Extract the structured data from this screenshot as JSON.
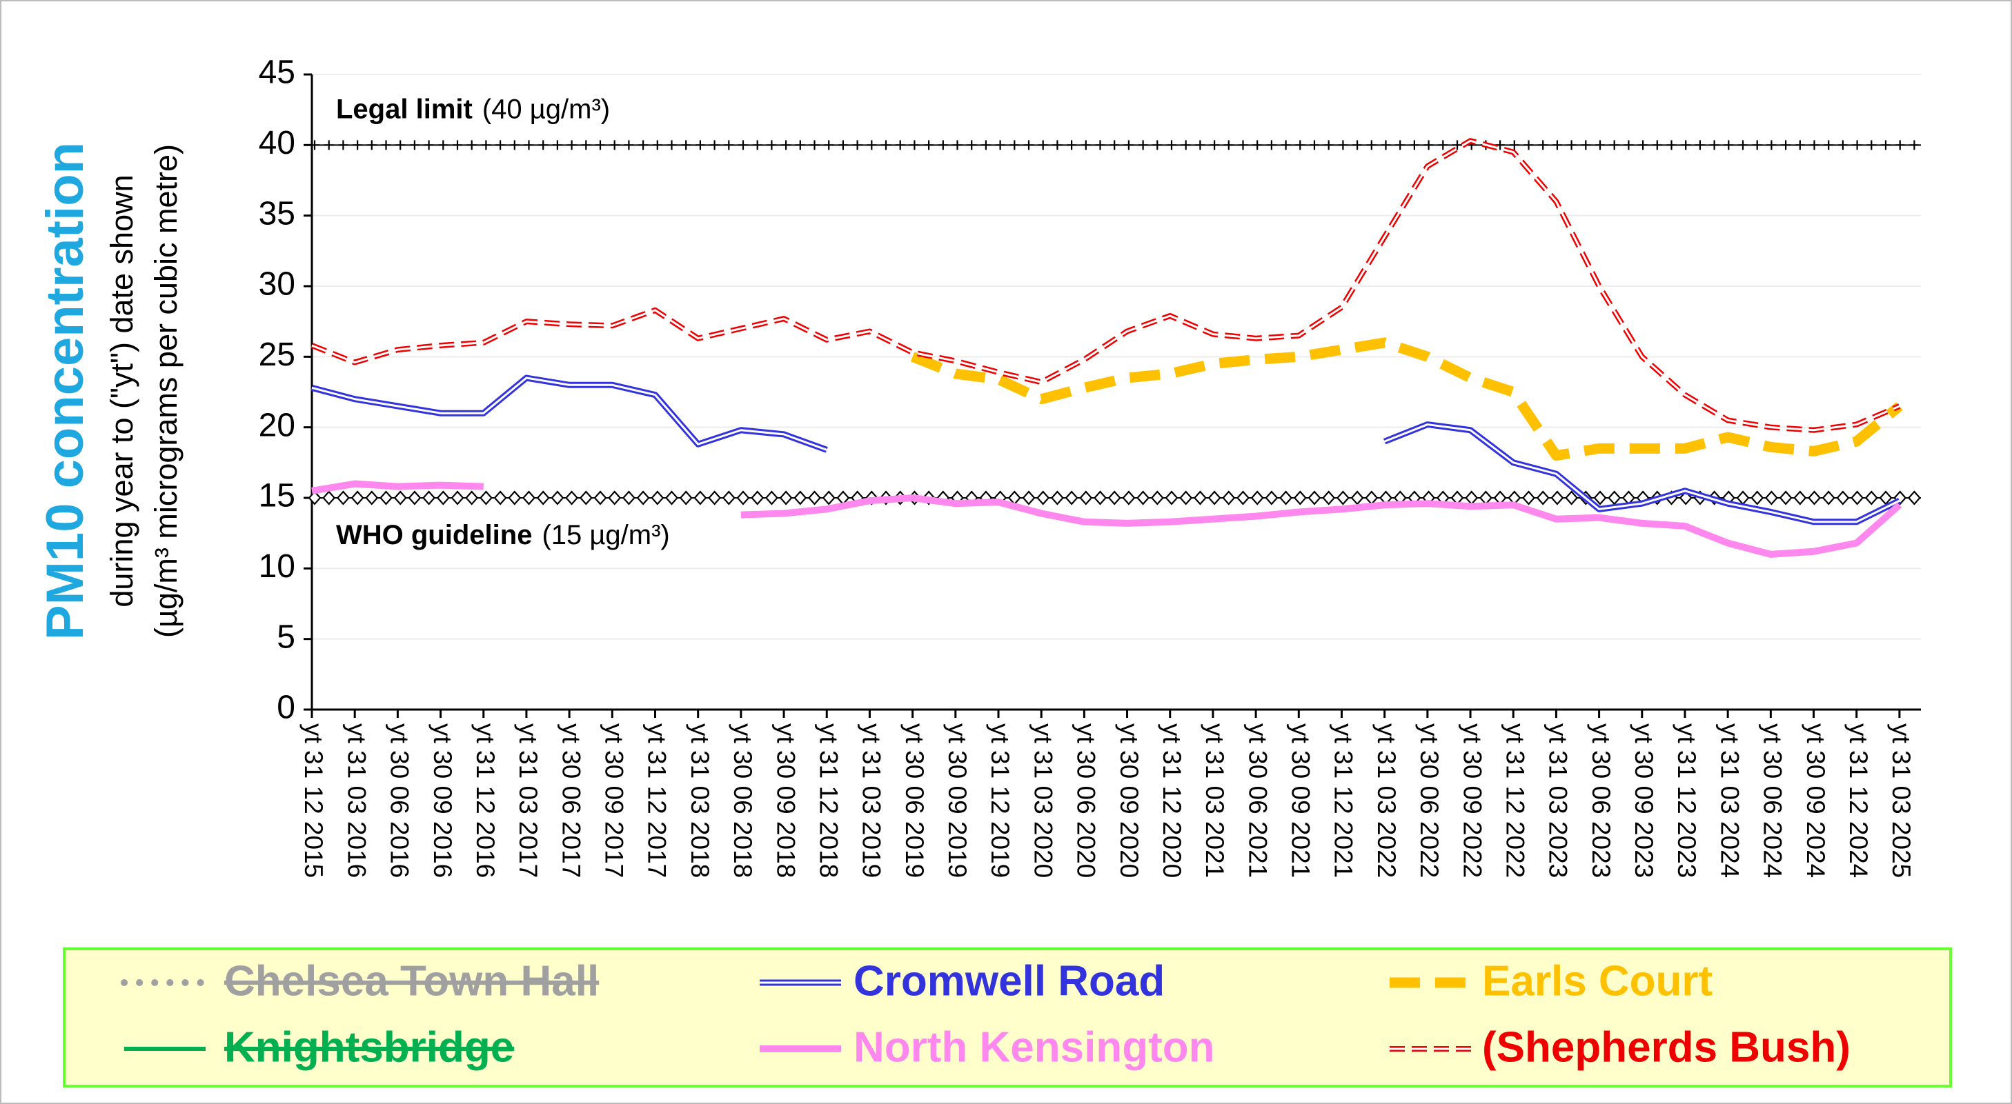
{
  "chart_data": {
    "type": "line",
    "ylabel": "PM10 concentration",
    "ylabel_lines": [
      "during year to (\"yt\") date shown",
      "(µg/m³ micrograms per cubic metre)"
    ],
    "ylim": [
      0,
      45
    ],
    "yticks": [
      0,
      5,
      10,
      15,
      20,
      25,
      30,
      35,
      40,
      45
    ],
    "grid": true,
    "categories": [
      "yt 31 12 2015",
      "yt 31 03 2016",
      "yt 30 06 2016",
      "yt 30 09 2016",
      "yt 31 12 2016",
      "yt 31 03 2017",
      "yt 30 06 2017",
      "yt 30 09 2017",
      "yt 31 12 2017",
      "yt 31 03 2018",
      "yt 30 06 2018",
      "yt 30 09 2018",
      "yt 31 12 2018",
      "yt 31 03 2019",
      "yt 30 06 2019",
      "yt 30 09 2019",
      "yt 31 12 2019",
      "yt 31 03 2020",
      "yt 30 06 2020",
      "yt 30 09 2020",
      "yt 31 12 2020",
      "yt 31 03 2021",
      "yt 30 06 2021",
      "yt 30 09 2021",
      "yt 31 12 2021",
      "yt 31 03 2022",
      "yt 30 06 2022",
      "yt 30 09 2022",
      "yt 31 12 2022",
      "yt 31 03 2023",
      "yt 30 06 2023",
      "yt 30 09 2023",
      "yt 31 12 2023",
      "yt 31 03 2024",
      "yt 30 06 2024",
      "yt 30 09 2024",
      "yt 31 12 2024",
      "yt 31 03 2025"
    ],
    "reference_lines": [
      {
        "label": "Legal limit",
        "value_label": "(40 µg/m³)",
        "value": 40,
        "marker": "plus"
      },
      {
        "label": "WHO guideline",
        "value_label": "(15 µg/m³)",
        "value": 15,
        "marker": "diamond"
      }
    ],
    "series": [
      {
        "name": "Chelsea Town Hall",
        "color": "#a0a0a0",
        "style": "dotted",
        "strikethrough": true,
        "values": [
          null,
          null,
          null,
          null,
          null,
          null,
          null,
          null,
          null,
          null,
          null,
          null,
          null,
          null,
          null,
          null,
          null,
          null,
          null,
          null,
          null,
          null,
          null,
          null,
          null,
          null,
          null,
          null,
          null,
          null,
          null,
          null,
          null,
          null,
          null,
          null,
          null,
          null
        ]
      },
      {
        "name": "Cromwell Road",
        "color": "#3333dd",
        "style": "double",
        "strikethrough": false,
        "values": [
          22.8,
          22,
          21.5,
          21,
          21,
          23.5,
          23,
          23,
          22.3,
          18.8,
          19.8,
          19.5,
          18.4,
          null,
          null,
          null,
          null,
          null,
          null,
          null,
          null,
          null,
          null,
          null,
          null,
          19,
          20.2,
          19.8,
          17.5,
          16.7,
          14.2,
          14.6,
          15.5,
          14.6,
          14,
          13.3,
          13.3,
          14.8
        ]
      },
      {
        "name": "Earls Court",
        "color": "#ffc000",
        "style": "dash",
        "strikethrough": false,
        "values": [
          null,
          null,
          null,
          null,
          null,
          null,
          null,
          null,
          null,
          null,
          null,
          null,
          null,
          null,
          25,
          23.8,
          23.4,
          22,
          22.8,
          23.5,
          23.8,
          24.5,
          24.8,
          25,
          25.5,
          26,
          25,
          23.5,
          22.5,
          18,
          18.5,
          18.5,
          18.5,
          19.3,
          18.6,
          18.3,
          19,
          21.5
        ]
      },
      {
        "name": "Knightsbridge",
        "color": "#00b050",
        "style": "solid",
        "strikethrough": true,
        "values": [
          null,
          null,
          null,
          null,
          null,
          null,
          null,
          null,
          null,
          null,
          null,
          null,
          null,
          null,
          null,
          null,
          null,
          null,
          null,
          null,
          null,
          null,
          null,
          null,
          null,
          null,
          null,
          null,
          null,
          null,
          null,
          null,
          null,
          null,
          null,
          null,
          null,
          null
        ]
      },
      {
        "name": "North Kensington",
        "color": "#ff88ee",
        "style": "thick",
        "strikethrough": false,
        "values": [
          15.5,
          16,
          15.8,
          15.9,
          15.8,
          null,
          null,
          null,
          null,
          null,
          13.8,
          13.9,
          14.2,
          14.8,
          15,
          14.6,
          14.7,
          13.9,
          13.3,
          13.2,
          13.3,
          13.5,
          13.7,
          14,
          14.2,
          14.5,
          14.6,
          14.4,
          14.5,
          13.5,
          13.6,
          13.2,
          13,
          11.8,
          11,
          11.2,
          11.8,
          14.5
        ]
      },
      {
        "name": "(Shepherds Bush)",
        "color": "#ee0000",
        "style": "dashed-double",
        "strikethrough": false,
        "values": [
          25.8,
          24.6,
          25.5,
          25.8,
          26,
          27.5,
          27.3,
          27.2,
          28.3,
          26.3,
          27,
          27.7,
          26.2,
          26.8,
          25.3,
          24.7,
          23.9,
          23.2,
          24.8,
          26.8,
          27.9,
          26.6,
          26.3,
          26.5,
          28.5,
          33.5,
          38.5,
          40.3,
          39.5,
          36,
          30,
          25,
          22.3,
          20.5,
          20,
          19.8,
          20.2,
          21.5
        ]
      }
    ]
  }
}
